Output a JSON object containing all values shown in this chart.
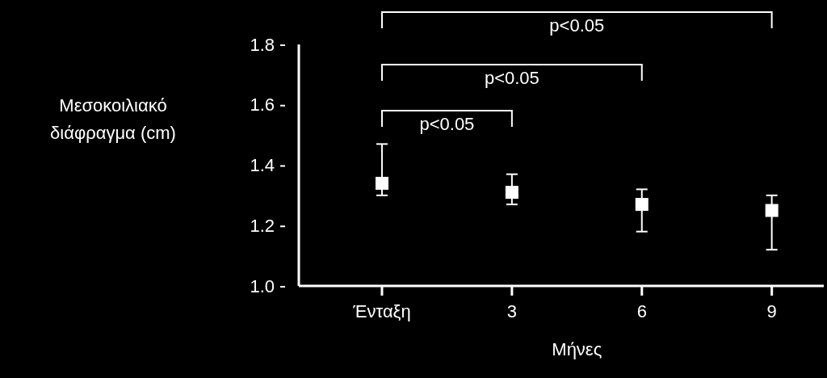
{
  "chart_data": {
    "type": "scatter",
    "categories": [
      "Ένταξη",
      "3",
      "6",
      "9"
    ],
    "values": [
      1.34,
      1.31,
      1.27,
      1.25
    ],
    "errors": [
      [
        1.3,
        1.47
      ],
      [
        1.27,
        1.37
      ],
      [
        1.18,
        1.32
      ],
      [
        1.12,
        1.3
      ]
    ],
    "color": "#ffffff",
    "marker": "square",
    "ylim": [
      1.0,
      1.8
    ],
    "yticks": [
      {
        "value": 1.0,
        "label": "1.0"
      },
      {
        "value": 1.2,
        "label": "1.2"
      },
      {
        "value": 1.4,
        "label": "1.4"
      },
      {
        "value": 1.6,
        "label": "1.6"
      },
      {
        "value": 1.8,
        "label": "1.8"
      }
    ],
    "xlabel": "Μήνες",
    "ylabel": "Μεσοκοιλιακό διάφραγμα (cm)",
    "grid": false,
    "annotations": [
      "p<0.05",
      "p<0.05",
      "p<0.05"
    ]
  }
}
